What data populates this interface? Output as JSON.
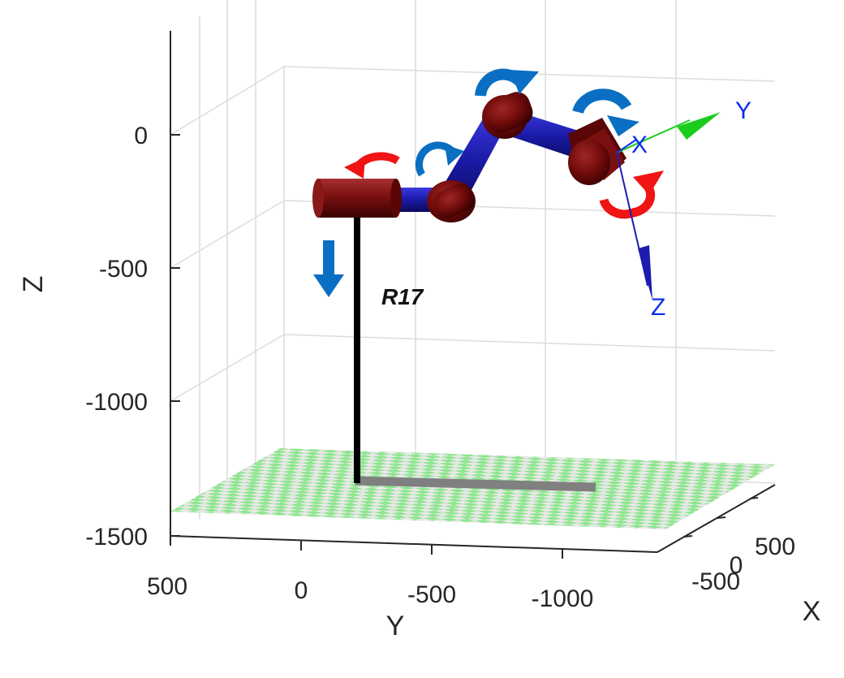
{
  "figure": {
    "robot_label": "R17",
    "axis_labels": {
      "x": "X",
      "y": "Y",
      "z": "Z"
    },
    "z_ticks": [
      "0",
      "-500",
      "-1000",
      "-1500"
    ],
    "y_ticks": [
      "500",
      "0",
      "-500",
      "-1000"
    ],
    "x_ticks": [
      "-500",
      "0",
      "500"
    ],
    "frame_labels": {
      "x": "X",
      "y": "Y",
      "z": "Z"
    },
    "grid": true,
    "floor": "checkerboard"
  },
  "colors": {
    "link": "#1a1aa6",
    "joint": "#6e0a0a",
    "rotation_arrow_blue": "#0a6fc2",
    "rotation_arrow_red": "#f01414",
    "translation_arrow": "#0a6fc2",
    "frame_x": "#0a2ff0",
    "frame_y": "#1ccc1c",
    "frame_z": "#1c1cb0",
    "floor_light": "#8fe68f",
    "floor_dark": "#e8e8e8",
    "base_pole": "#000000",
    "base_rail": "#808080"
  }
}
